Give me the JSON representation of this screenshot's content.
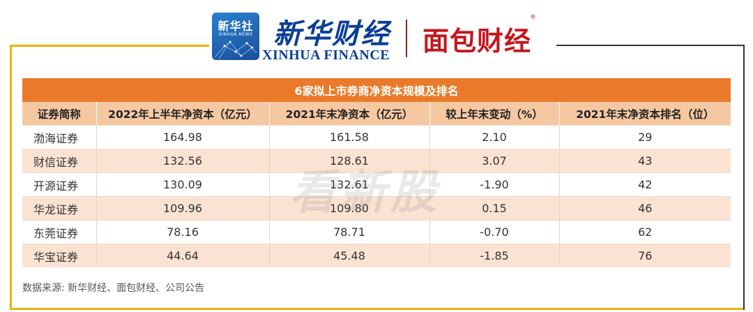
{
  "header": {
    "badge_text": "新华社",
    "badge_sub": "XINHUA NEWS",
    "brand_cn": "新华财经",
    "brand_en": "XINHUA FINANCE",
    "partner_brand": "面包财经",
    "partner_reg": "®"
  },
  "table": {
    "title": "6家拟上市券商净资本规模及排名",
    "columns": [
      "证券简称",
      "2022年上半年净资本（亿元）",
      "2021年末净资本（亿元）",
      "较上年末变动（%）",
      "2021年末净资本排名（位）"
    ],
    "rows": [
      {
        "name": "渤海证券",
        "h1_2022": "164.98",
        "end_2021": "161.58",
        "change": "2.10",
        "rank": "29"
      },
      {
        "name": "财信证券",
        "h1_2022": "132.56",
        "end_2021": "128.61",
        "change": "3.07",
        "rank": "43"
      },
      {
        "name": "开源证券",
        "h1_2022": "130.09",
        "end_2021": "132.61",
        "change": "-1.90",
        "rank": "42"
      },
      {
        "name": "华龙证券",
        "h1_2022": "109.96",
        "end_2021": "109.80",
        "change": "0.15",
        "rank": "46"
      },
      {
        "name": "东莞证券",
        "h1_2022": "78.16",
        "end_2021": "78.71",
        "change": "-0.70",
        "rank": "62"
      },
      {
        "name": "华宝证券",
        "h1_2022": "44.64",
        "end_2021": "45.48",
        "change": "-1.85",
        "rank": "76"
      }
    ]
  },
  "watermark": "看新股",
  "source": "数据来源: 新华财经、面包财经、公司公告",
  "colors": {
    "title_bg": "#ea7a2a",
    "header_bg": "#f6c8a2",
    "stripe_bg": "#fbe3d3",
    "frame_gold": "#e9b400",
    "xinhua_blue": "#0a3f95",
    "mianbao_red": "#c4161c"
  }
}
